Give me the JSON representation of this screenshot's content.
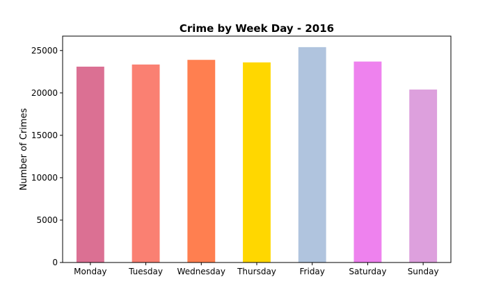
{
  "chart_data": {
    "type": "bar",
    "title": "Crime by Week Day - 2016",
    "xlabel": "",
    "ylabel": "Number of Crimes",
    "categories": [
      "Monday",
      "Tuesday",
      "Wednesday",
      "Thursday",
      "Friday",
      "Saturday",
      "Sunday"
    ],
    "values": [
      23100,
      23350,
      23900,
      23600,
      25400,
      23700,
      20400
    ],
    "colors": [
      "#DB7093",
      "#FA8072",
      "#FF7F50",
      "#FFD700",
      "#B0C4DE",
      "#EE82EE",
      "#DDA0DD"
    ],
    "ylim": [
      0,
      26700
    ],
    "yticks": [
      0,
      5000,
      10000,
      15000,
      20000,
      25000
    ],
    "grid": false,
    "legend": false
  }
}
